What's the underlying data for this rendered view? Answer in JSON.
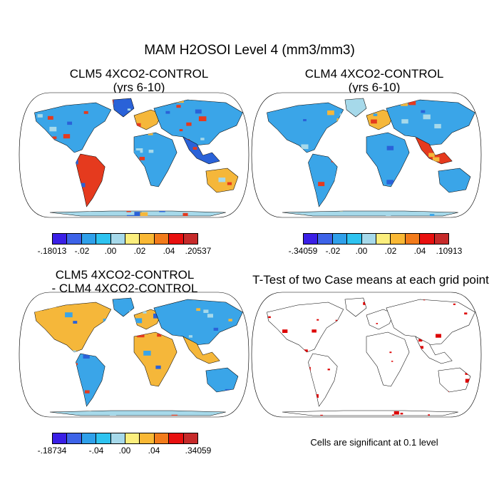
{
  "figure": {
    "title": "MAM H2OSOI Level 4 (mm3/mm3)"
  },
  "panels": [
    {
      "title_line1": "CLM5 4XCO2-CONTROL",
      "title_line2": "(yrs 6-10)",
      "colorbar_labels": [
        "-.18013",
        "-.02",
        ".00",
        ".02",
        ".04",
        ".20537"
      ]
    },
    {
      "title_line1": "CLM4 4XCO2-CONTROL",
      "title_line2": "(yrs 6-10)",
      "colorbar_labels": [
        "-.34059",
        "-.02",
        ".00",
        ".02",
        ".04",
        ".10913"
      ]
    },
    {
      "title_line1": "CLM5 4XCO2-CONTROL",
      "title_line2": "- CLM4 4XCO2-CONTROL",
      "colorbar_labels": [
        "-.18734",
        "-.04",
        ".00",
        ".04",
        ".34059"
      ]
    },
    {
      "title_line1": "T-Test of two Case means at each grid point",
      "note": "Cells are significant at 0.1 level"
    }
  ],
  "colorbar_colors": [
    "#3a1fe6",
    "#3d63e8",
    "#2fa0ea",
    "#2ec3f0",
    "#a6d9ea",
    "#fbee7d",
    "#f9b835",
    "#f27b1b",
    "#e8100f",
    "#c62a2a"
  ],
  "map_colors": {
    "land_cool": "#3aa5e8",
    "land_deep": "#2a62d8",
    "land_warm": "#f5b73a",
    "land_hot": "#e53a1e",
    "land_neutral": "#a6d9ea",
    "significance": "#dd0000",
    "outline": "#000000"
  }
}
